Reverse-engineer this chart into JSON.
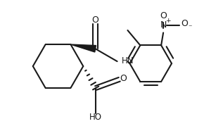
{
  "background_color": "#ffffff",
  "line_color": "#1a1a1a",
  "bond_lw": 1.5,
  "font_size": 8.5,
  "figsize": [
    3.17,
    1.96
  ],
  "dpi": 100,
  "xlim": [
    0.0,
    3.17
  ],
  "ylim": [
    0.0,
    1.96
  ]
}
